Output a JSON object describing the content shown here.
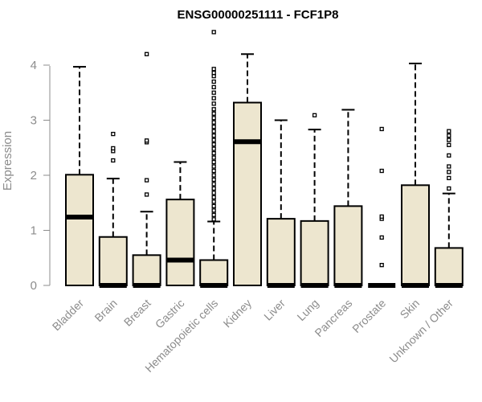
{
  "chart_data": {
    "type": "box",
    "title": "ENSG00000251111 - FCF1P8",
    "ylabel": "Expression",
    "xlabel": "",
    "ylim": [
      0,
      4.5
    ],
    "yticks": [
      0,
      1,
      2,
      3,
      4
    ],
    "box_fill": "#ede6cf",
    "categories": [
      "Bladder",
      "Brain",
      "Breast",
      "Gastric",
      "Hematopoietic cells",
      "Kidney",
      "Liver",
      "Lung",
      "Pancreas",
      "Prostate",
      "Skin",
      "Unknown / Other"
    ],
    "boxes": [
      {
        "q1": 0,
        "median": 1.24,
        "q3": 2.01,
        "whisker_low": 0,
        "whisker_high": 3.97,
        "outliers": []
      },
      {
        "q1": 0,
        "median": 0,
        "q3": 0.88,
        "whisker_low": 0,
        "whisker_high": 1.94,
        "outliers": [
          2.27,
          2.44,
          2.49,
          2.75
        ]
      },
      {
        "q1": 0,
        "median": 0,
        "q3": 0.55,
        "whisker_low": 0,
        "whisker_high": 1.34,
        "outliers": [
          1.65,
          1.91,
          2.6,
          2.63,
          4.2
        ]
      },
      {
        "q1": 0,
        "median": 0.46,
        "q3": 1.56,
        "whisker_low": 0,
        "whisker_high": 2.24,
        "outliers": []
      },
      {
        "q1": 0,
        "median": 0,
        "q3": 0.46,
        "whisker_low": 0,
        "whisker_high": 1.16,
        "outliers": [
          1.2,
          1.28,
          1.36,
          1.44,
          1.52,
          1.6,
          1.68,
          1.76,
          1.84,
          1.92,
          2.0,
          2.08,
          2.16,
          2.24,
          2.32,
          2.4,
          2.48,
          2.56,
          2.64,
          2.72,
          2.8,
          2.88,
          2.96,
          3.04,
          3.12,
          3.2,
          3.3,
          3.4,
          3.5,
          3.6,
          3.7,
          3.8,
          3.86,
          3.93,
          4.6
        ]
      },
      {
        "q1": 0,
        "median": 2.61,
        "q3": 3.32,
        "whisker_low": 0,
        "whisker_high": 4.2,
        "outliers": []
      },
      {
        "q1": 0,
        "median": 0,
        "q3": 1.21,
        "whisker_low": 0,
        "whisker_high": 3.0,
        "outliers": []
      },
      {
        "q1": 0,
        "median": 0,
        "q3": 1.17,
        "whisker_low": 0,
        "whisker_high": 2.83,
        "outliers": [
          3.09
        ]
      },
      {
        "q1": 0,
        "median": 0,
        "q3": 1.44,
        "whisker_low": 0,
        "whisker_high": 3.19,
        "outliers": []
      },
      {
        "q1": 0,
        "median": 0,
        "q3": 0,
        "whisker_low": 0,
        "whisker_high": 0,
        "outliers": [
          0.37,
          0.87,
          1.21,
          1.25,
          2.08,
          2.84
        ]
      },
      {
        "q1": 0,
        "median": 0,
        "q3": 1.82,
        "whisker_low": 0,
        "whisker_high": 4.03,
        "outliers": []
      },
      {
        "q1": 0,
        "median": 0,
        "q3": 0.68,
        "whisker_low": 0,
        "whisker_high": 1.67,
        "outliers": [
          1.76,
          1.95,
          2.06,
          2.16,
          2.36,
          2.55,
          2.64,
          2.72,
          2.8
        ]
      }
    ]
  }
}
